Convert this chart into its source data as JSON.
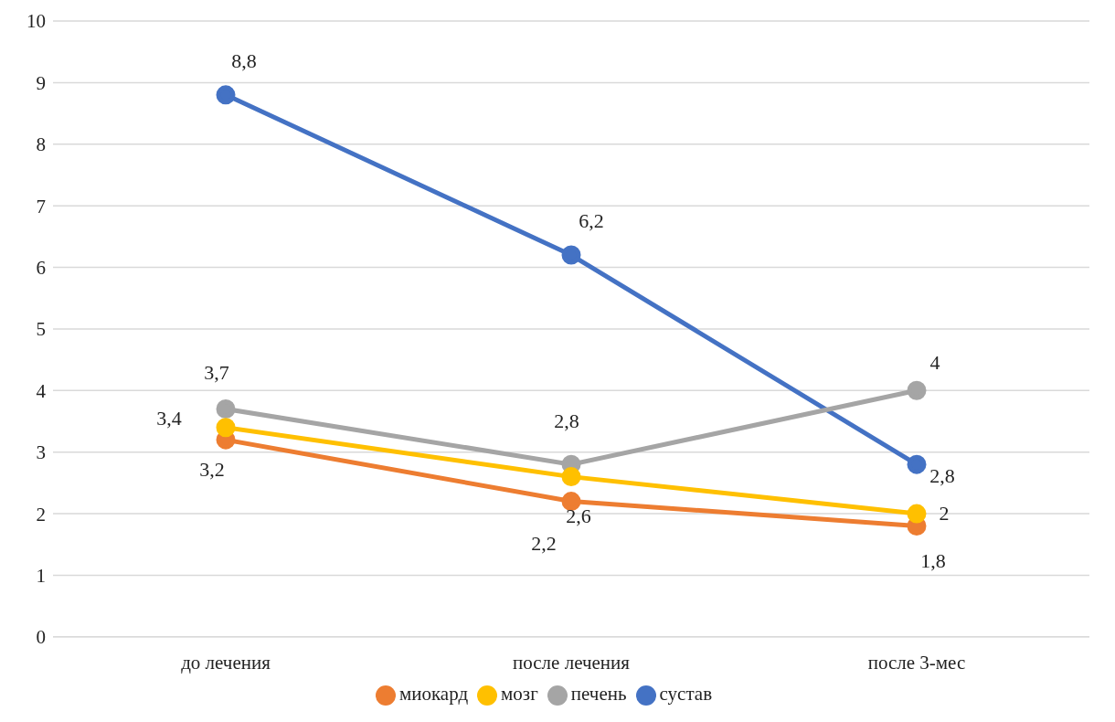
{
  "chart_data": {
    "type": "line",
    "categories": [
      "до лечения",
      "после лечения",
      "после 3-мес"
    ],
    "series": [
      {
        "name": "сустав",
        "color": "#4472c4",
        "values": [
          8.8,
          6.2,
          2.8
        ],
        "value_labels": [
          "8,8",
          "6,2",
          "2,8"
        ]
      },
      {
        "name": "миокард",
        "color": "#ed7d31",
        "values": [
          3.2,
          2.2,
          1.8
        ],
        "value_labels": [
          "3,2",
          "2,2",
          "1,8"
        ]
      },
      {
        "name": "печень",
        "color": "#a5a5a5",
        "values": [
          3.7,
          2.8,
          4
        ],
        "value_labels": [
          "3,7",
          "2,8",
          "4"
        ]
      },
      {
        "name": "мозг",
        "color": "#ffc000",
        "values": [
          3.4,
          2.6,
          2
        ],
        "value_labels": [
          "3,4",
          "2,6",
          "2"
        ]
      }
    ],
    "ylim": [
      0,
      10
    ],
    "yticks": [
      0,
      1,
      2,
      3,
      4,
      5,
      6,
      7,
      8,
      9,
      10
    ],
    "grid": "y",
    "legend": "bottom",
    "marker": "circle",
    "line_style": "solid"
  }
}
